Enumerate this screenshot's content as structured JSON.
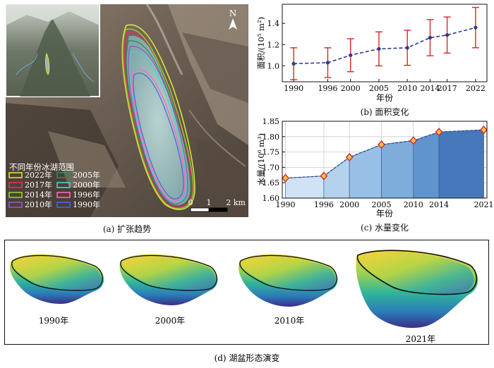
{
  "panel_a": {
    "caption": "(a) 扩张趋势",
    "north": "N",
    "legend_title": "不同年份冰湖范围",
    "legend_items": [
      {
        "label": "2022年",
        "color": "#d8e040"
      },
      {
        "label": "2005年",
        "color": "#2e8b57"
      },
      {
        "label": "2017年",
        "color": "#e03060"
      },
      {
        "label": "2000年",
        "color": "#48d1cc"
      },
      {
        "label": "2014年",
        "color": "#9acd32"
      },
      {
        "label": "1996年",
        "color": "#ff69b4"
      },
      {
        "label": "2010年",
        "color": "#9b59b6"
      },
      {
        "label": "1990年",
        "color": "#4169e1"
      }
    ],
    "scale_labels": [
      "0",
      "1",
      "2 km"
    ]
  },
  "panel_b": {
    "caption": "(b) 面积变化",
    "ylabel": "面积/(10⁵ m²)",
    "xlabel": "年份"
  },
  "panel_c": {
    "caption": "(c) 水量变化",
    "ylabel": "水量/(10⁶ m³)",
    "xlabel": "年份"
  },
  "panel_d": {
    "caption": "(d) 湖盆形态演变",
    "labels": [
      "1990年",
      "2000年",
      "2010年",
      "2021年"
    ]
  },
  "chart_data": [
    {
      "type": "line",
      "title": "(b) 面积变化",
      "xlabel": "年份",
      "ylabel": "面积/(10⁵ m²)",
      "categories": [
        "1990",
        "1996",
        "2000",
        "2005",
        "2010",
        "2014",
        "2017",
        "2022"
      ],
      "x": [
        1990,
        1996,
        2000,
        2005,
        2010,
        2014,
        2017,
        2022
      ],
      "values": [
        1.02,
        1.03,
        1.1,
        1.16,
        1.17,
        1.265,
        1.29,
        1.36
      ],
      "errors": [
        0.15,
        0.14,
        0.155,
        0.16,
        0.165,
        0.17,
        0.17,
        0.19
      ],
      "ylim": [
        0.85,
        1.58
      ],
      "yticks": [
        1.0,
        1.2,
        1.4
      ],
      "line_color": "#2b3a8c",
      "error_color": "#d62728",
      "grid": false
    },
    {
      "type": "area",
      "title": "(c) 水量变化",
      "xlabel": "年份",
      "ylabel": "水量/(10⁶ m³)",
      "categories": [
        "1990",
        "1996",
        "2000",
        "2005",
        "2010",
        "2014",
        "2021"
      ],
      "x": [
        1990,
        1996,
        2000,
        2005,
        2010,
        2014,
        2021
      ],
      "values": [
        1.665,
        1.672,
        1.733,
        1.774,
        1.787,
        1.815,
        1.822
      ],
      "ylim": [
        1.6,
        1.85
      ],
      "yticks": [
        1.6,
        1.65,
        1.7,
        1.75,
        1.8,
        1.85
      ],
      "grid": true
    }
  ]
}
